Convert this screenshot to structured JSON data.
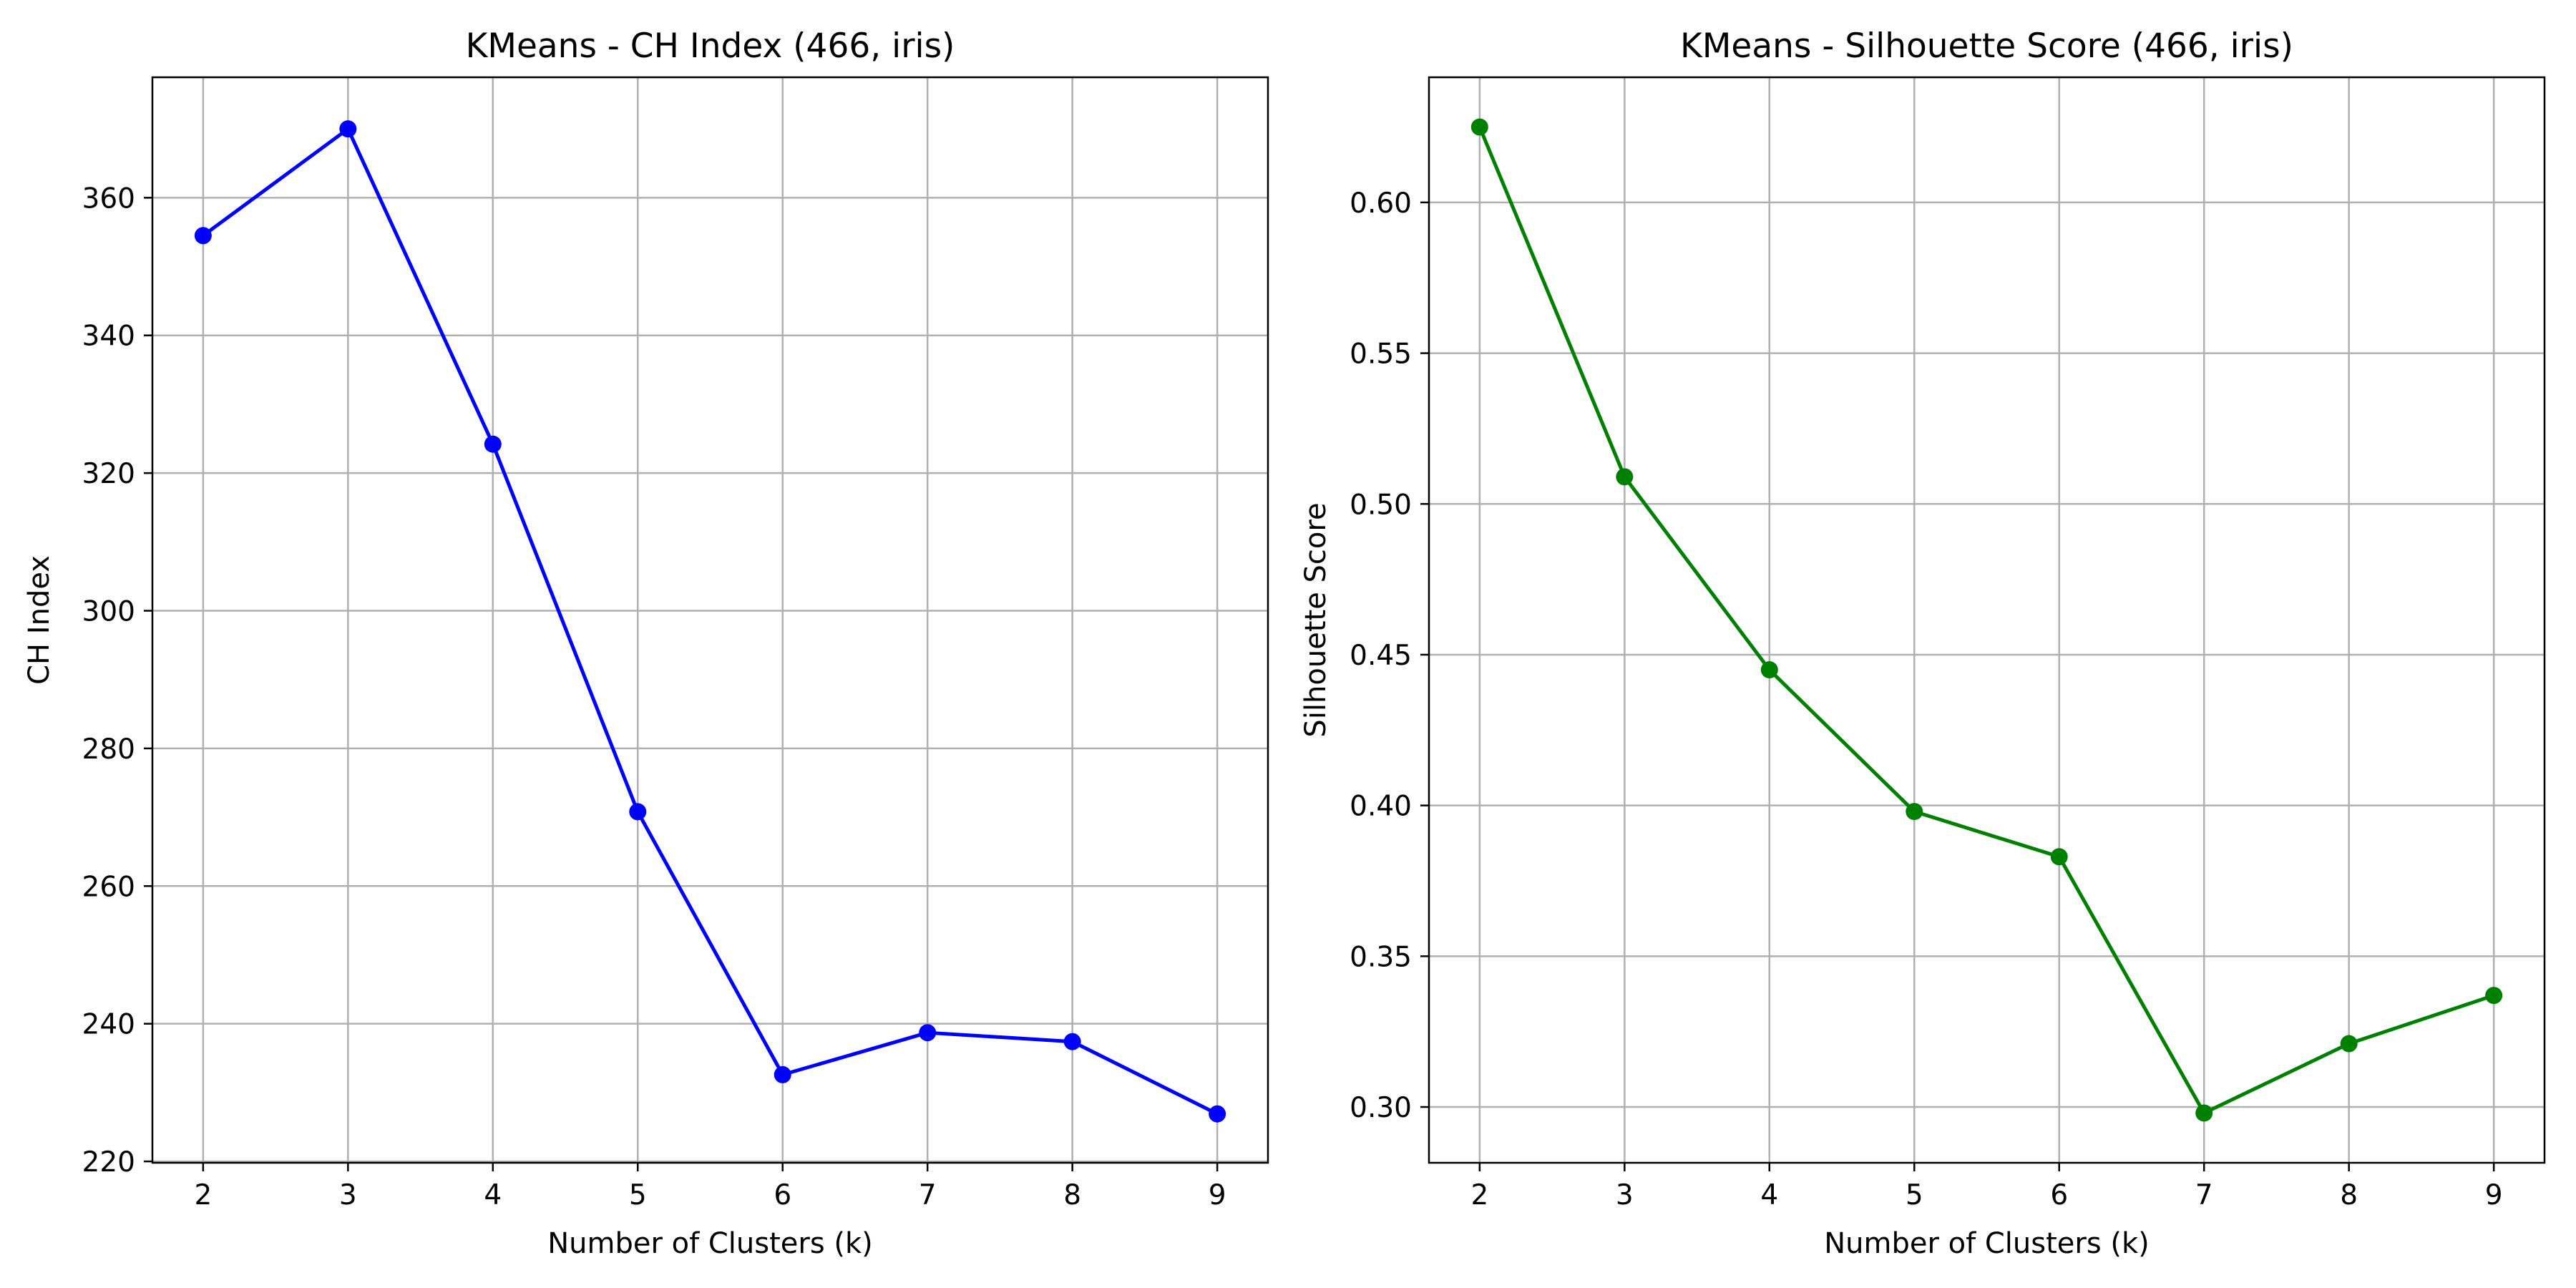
{
  "chart_data": [
    {
      "type": "line",
      "title": "KMeans - CH Index (466, iris)",
      "xlabel": "Number of Clusters (k)",
      "ylabel": "CH Index",
      "x": [
        2,
        3,
        4,
        5,
        6,
        7,
        8,
        9
      ],
      "series": [
        {
          "values": [
            354.5,
            370.0,
            324.2,
            270.8,
            232.6,
            238.7,
            237.4,
            226.9
          ],
          "color": "#0000ff",
          "marker": "circle"
        }
      ],
      "xticks": [
        "2",
        "3",
        "4",
        "5",
        "6",
        "7",
        "8",
        "9"
      ],
      "yticks": [
        "220",
        "240",
        "260",
        "280",
        "300",
        "320",
        "340",
        "360"
      ],
      "xlim": [
        1.65,
        9.35
      ],
      "ylim": [
        219.8,
        377.5
      ],
      "grid": true
    },
    {
      "type": "line",
      "title": "KMeans - Silhouette Score (466, iris)",
      "xlabel": "Number of Clusters (k)",
      "ylabel": "Silhouette Score",
      "x": [
        2,
        3,
        4,
        5,
        6,
        7,
        8,
        9
      ],
      "series": [
        {
          "values": [
            0.625,
            0.509,
            0.445,
            0.398,
            0.383,
            0.298,
            0.321,
            0.337
          ],
          "color": "#008000",
          "marker": "circle"
        }
      ],
      "xticks": [
        "2",
        "3",
        "4",
        "5",
        "6",
        "7",
        "8",
        "9"
      ],
      "yticks": [
        "0.30",
        "0.35",
        "0.40",
        "0.45",
        "0.50",
        "0.55",
        "0.60"
      ],
      "xlim": [
        1.65,
        9.35
      ],
      "ylim": [
        0.2815,
        0.6415
      ],
      "grid": true
    }
  ]
}
